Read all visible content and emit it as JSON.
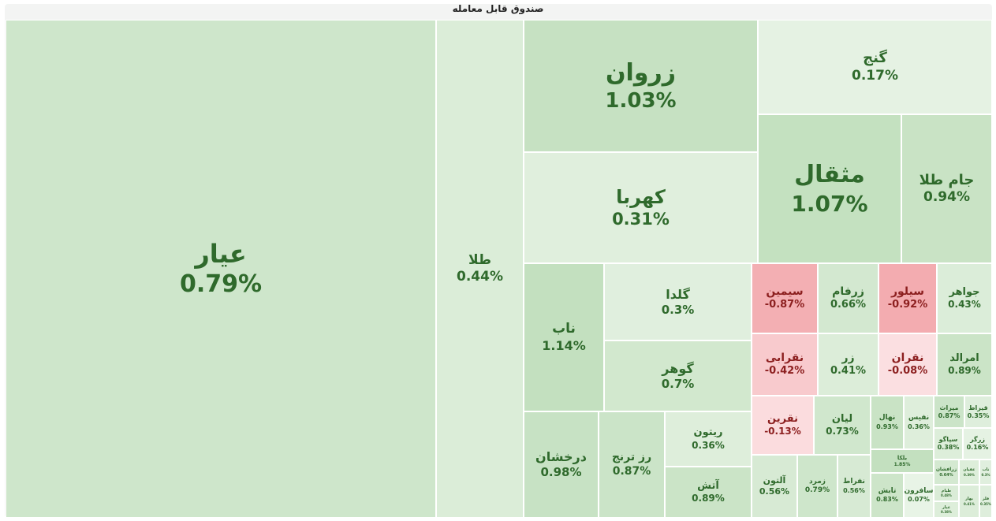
{
  "chart_data": {
    "type": "treemap",
    "title": "صندوق قابل معامله",
    "items": [
      {
        "name": "عیار",
        "change": 0.79,
        "label": "0.79%"
      },
      {
        "name": "طلا",
        "change": 0.44,
        "label": "0.44%"
      },
      {
        "name": "زروان",
        "change": 1.03,
        "label": "1.03%"
      },
      {
        "name": "کهربا",
        "change": 0.31,
        "label": "0.31%"
      },
      {
        "name": "گنج",
        "change": 0.17,
        "label": "0.17%"
      },
      {
        "name": "مثقال",
        "change": 1.07,
        "label": "1.07%"
      },
      {
        "name": "جام طلا",
        "change": 0.94,
        "label": "0.94%"
      },
      {
        "name": "ناب",
        "change": 1.14,
        "label": "1.14%"
      },
      {
        "name": "گلدا",
        "change": 0.3,
        "label": "0.3%"
      },
      {
        "name": "گوهر",
        "change": 0.7,
        "label": "0.7%"
      },
      {
        "name": "درخشان",
        "change": 0.98,
        "label": "0.98%"
      },
      {
        "name": "رز ترنج",
        "change": 0.87,
        "label": "0.87%"
      },
      {
        "name": "ریتون",
        "change": 0.36,
        "label": "0.36%"
      },
      {
        "name": "آتش",
        "change": 0.89,
        "label": "0.89%"
      },
      {
        "name": "سیمین",
        "change": -0.87,
        "label": "-0.87%"
      },
      {
        "name": "زرفام",
        "change": 0.66,
        "label": "0.66%"
      },
      {
        "name": "سیلور",
        "change": -0.92,
        "label": "-0.92%"
      },
      {
        "name": "جواهر",
        "change": 0.43,
        "label": "0.43%"
      },
      {
        "name": "نقرابی",
        "change": -0.42,
        "label": "-0.42%"
      },
      {
        "name": "زر",
        "change": 0.41,
        "label": "0.41%"
      },
      {
        "name": "نقران",
        "change": -0.08,
        "label": "-0.08%"
      },
      {
        "name": "امرالد",
        "change": 0.89,
        "label": "0.89%"
      },
      {
        "name": "نقرین",
        "change": -0.13,
        "label": "-0.13%"
      },
      {
        "name": "لیان",
        "change": 0.73,
        "label": "0.73%"
      },
      {
        "name": "نهال",
        "change": 0.93,
        "label": "0.93%"
      },
      {
        "name": "نفیس",
        "change": 0.36,
        "label": "0.36%"
      },
      {
        "name": "میراث",
        "change": 0.87,
        "label": "0.87%"
      },
      {
        "name": "قیراط",
        "change": 0.35,
        "label": "0.35%"
      },
      {
        "name": "سپاگو",
        "change": 0.38,
        "label": "0.38%"
      },
      {
        "name": "زرگر",
        "change": 0.16,
        "label": "0.16%"
      },
      {
        "name": "بلکا",
        "change": 1.85,
        "label": "1.85%"
      },
      {
        "name": "آلتون",
        "change": 0.56,
        "label": "0.56%"
      },
      {
        "name": "زمرد",
        "change": 0.79,
        "label": "0.79%"
      },
      {
        "name": "نفراط",
        "change": 0.56,
        "label": "0.56%"
      },
      {
        "name": "تابش",
        "change": 0.83,
        "label": "0.83%"
      },
      {
        "name": "سافرون",
        "change": 0.07,
        "label": "0.07%"
      },
      {
        "name": "زرافشان",
        "change": 0.64,
        "label": "0.64%"
      },
      {
        "name": "عقیان",
        "change": 0.39,
        "label": "0.39%"
      },
      {
        "name": "ناب",
        "change": 0.3,
        "label": "0.3%"
      },
      {
        "name": "طیام",
        "change": 0.48,
        "label": "0.48%"
      },
      {
        "name": "عیار",
        "change": 0.38,
        "label": "0.38%"
      },
      {
        "name": "بهار",
        "change": 0.41,
        "label": "0.41%"
      },
      {
        "name": "فلز",
        "change": 0.35,
        "label": "0.35%"
      }
    ]
  }
}
